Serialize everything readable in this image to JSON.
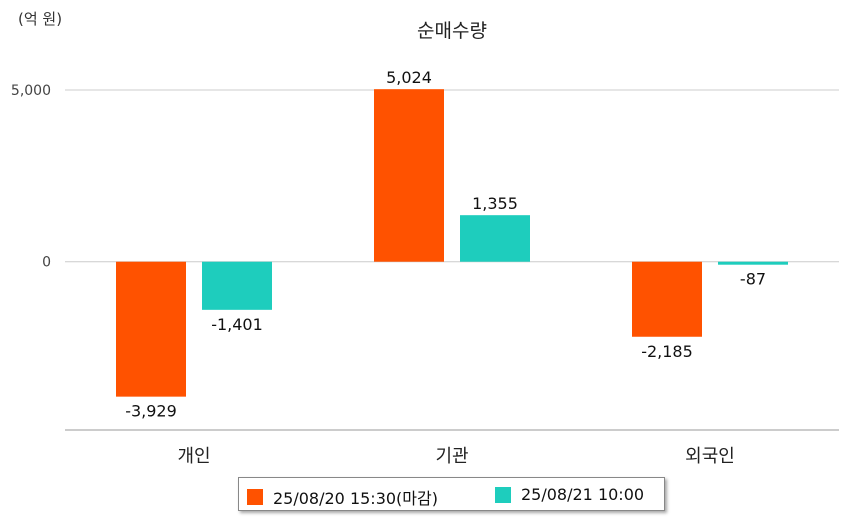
{
  "chart_data": {
    "type": "bar",
    "title": "순매수량",
    "unit_label": "(억 원)",
    "categories": [
      "개인",
      "기관",
      "외국인"
    ],
    "series": [
      {
        "name": "25/08/20 15:30(마감)",
        "color": "#FF5200",
        "values": [
          -3929,
          5024,
          -2185
        ],
        "labels": [
          "-3,929",
          "5,024",
          "-2,185"
        ]
      },
      {
        "name": "25/08/21 10:00",
        "color": "#1ECDBD",
        "values": [
          -1401,
          1355,
          -87
        ],
        "labels": [
          "-1,401",
          "1,355",
          "-87"
        ]
      }
    ],
    "y_ticks": [
      0,
      5000
    ],
    "y_tick_labels": [
      "0",
      "5,000"
    ],
    "ylim": [
      -4900,
      5000
    ],
    "grid": true,
    "legend_position": "bottom"
  }
}
